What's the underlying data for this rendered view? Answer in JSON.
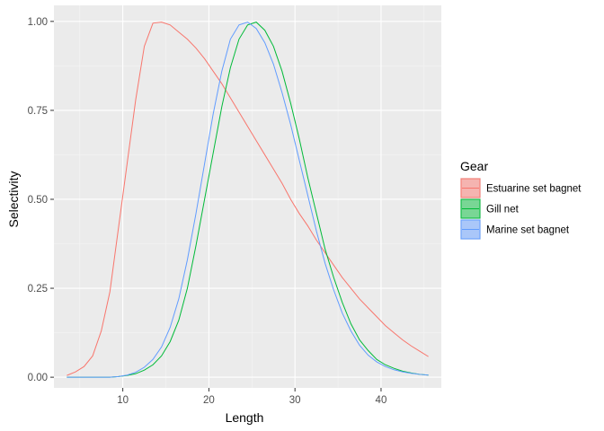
{
  "chart_data": {
    "type": "line",
    "title": "",
    "xlabel": "Length",
    "ylabel": "Selectivity",
    "xlim": [
      2,
      47
    ],
    "ylim": [
      -0.03,
      1.045
    ],
    "x_ticks": [
      10,
      20,
      30,
      40
    ],
    "x_tick_labels": [
      "10",
      "20",
      "30",
      "40"
    ],
    "y_ticks": [
      0,
      0.25,
      0.5,
      0.75,
      1.0
    ],
    "y_tick_labels": [
      "0.00",
      "0.25",
      "0.50",
      "0.75",
      "1.00"
    ],
    "grid": true,
    "legend": {
      "title": "Gear",
      "position": "right"
    },
    "series": [
      {
        "name": "Estuarine set bagnet",
        "color": "#F8766D",
        "x": [
          3.5,
          4.5,
          5.5,
          6.5,
          7.5,
          8.5,
          9.5,
          10.5,
          11.5,
          12.5,
          13.5,
          14.5,
          15.5,
          16.5,
          17.5,
          18.5,
          19.5,
          20.5,
          21.5,
          22.5,
          23.5,
          24.5,
          25.5,
          26.5,
          27.5,
          28.5,
          29.5,
          30.5,
          31.5,
          32.5,
          33.5,
          34.5,
          35.5,
          36.5,
          37.5,
          38.5,
          39.5,
          40.5,
          41.5,
          42.5,
          43.5,
          44.5,
          45.5
        ],
        "y": [
          0.005,
          0.015,
          0.03,
          0.06,
          0.13,
          0.24,
          0.42,
          0.6,
          0.78,
          0.93,
          0.995,
          0.998,
          0.99,
          0.97,
          0.95,
          0.925,
          0.895,
          0.86,
          0.825,
          0.785,
          0.745,
          0.705,
          0.665,
          0.625,
          0.585,
          0.545,
          0.5,
          0.46,
          0.425,
          0.385,
          0.35,
          0.315,
          0.28,
          0.25,
          0.22,
          0.195,
          0.17,
          0.145,
          0.125,
          0.105,
          0.088,
          0.073,
          0.058
        ]
      },
      {
        "name": "Gill net",
        "color": "#00BA38",
        "x": [
          3.5,
          4.5,
          5.5,
          6.5,
          7.5,
          8.5,
          9.5,
          10.5,
          11.5,
          12.5,
          13.5,
          14.5,
          15.5,
          16.5,
          17.5,
          18.5,
          19.5,
          20.5,
          21.5,
          22.5,
          23.5,
          24.5,
          25.5,
          26.5,
          27.5,
          28.5,
          29.5,
          30.5,
          31.5,
          32.5,
          33.5,
          34.5,
          35.5,
          36.5,
          37.5,
          38.5,
          39.5,
          40.5,
          41.5,
          42.5,
          43.5,
          44.5,
          45.5
        ],
        "y": [
          0,
          0,
          0,
          0,
          0,
          0,
          0.002,
          0.005,
          0.01,
          0.02,
          0.035,
          0.06,
          0.1,
          0.16,
          0.25,
          0.37,
          0.5,
          0.63,
          0.76,
          0.87,
          0.95,
          0.99,
          0.998,
          0.975,
          0.93,
          0.86,
          0.77,
          0.67,
          0.56,
          0.46,
          0.36,
          0.28,
          0.21,
          0.15,
          0.105,
          0.075,
          0.05,
          0.035,
          0.025,
          0.017,
          0.012,
          0.008,
          0.006
        ]
      },
      {
        "name": "Marine set bagnet",
        "color": "#619CFF",
        "x": [
          3.5,
          4.5,
          5.5,
          6.5,
          7.5,
          8.5,
          9.5,
          10.5,
          11.5,
          12.5,
          13.5,
          14.5,
          15.5,
          16.5,
          17.5,
          18.5,
          19.5,
          20.5,
          21.5,
          22.5,
          23.5,
          24.5,
          25.5,
          26.5,
          27.5,
          28.5,
          29.5,
          30.5,
          31.5,
          32.5,
          33.5,
          34.5,
          35.5,
          36.5,
          37.5,
          38.5,
          39.5,
          40.5,
          41.5,
          42.5,
          43.5,
          44.5,
          45.5
        ],
        "y": [
          0,
          0,
          0,
          0,
          0,
          0,
          0.002,
          0.006,
          0.014,
          0.028,
          0.05,
          0.085,
          0.14,
          0.22,
          0.33,
          0.46,
          0.6,
          0.74,
          0.86,
          0.95,
          0.99,
          0.998,
          0.98,
          0.94,
          0.88,
          0.8,
          0.71,
          0.61,
          0.51,
          0.41,
          0.32,
          0.245,
          0.18,
          0.13,
          0.09,
          0.062,
          0.043,
          0.03,
          0.021,
          0.015,
          0.011,
          0.008,
          0.006
        ]
      }
    ]
  }
}
